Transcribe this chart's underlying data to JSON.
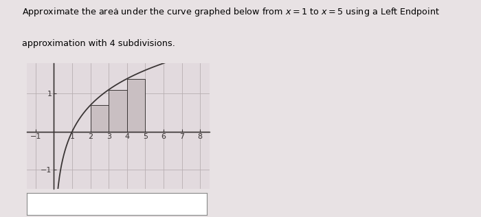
{
  "text_line1": "Approximate the areȧ under the curve graphed below from $x = 1$ to $x = 5$ using a Left Endpoint",
  "text_line2": "approximation with 4 subdivisions.",
  "bg_color": "#e8e2e4",
  "plot_bg_color": "#e2dade",
  "curve_color": "#3a3535",
  "rect_facecolor": "#c9bfc2",
  "rect_edgecolor": "#3a3535",
  "axis_color": "#3a3535",
  "grid_color": "#b8aeb1",
  "xmin": -1.5,
  "xmax": 8.5,
  "ymin": -1.5,
  "ymax": 1.8,
  "xticks": [
    -1,
    1,
    2,
    3,
    4,
    5,
    6,
    7,
    8
  ],
  "yticks": [
    -1,
    1
  ],
  "subdivisions": 4,
  "x_start": 1,
  "x_end": 5,
  "curve_xmin": 0.05,
  "curve_xmax": 8.5,
  "answer_box_text": ""
}
